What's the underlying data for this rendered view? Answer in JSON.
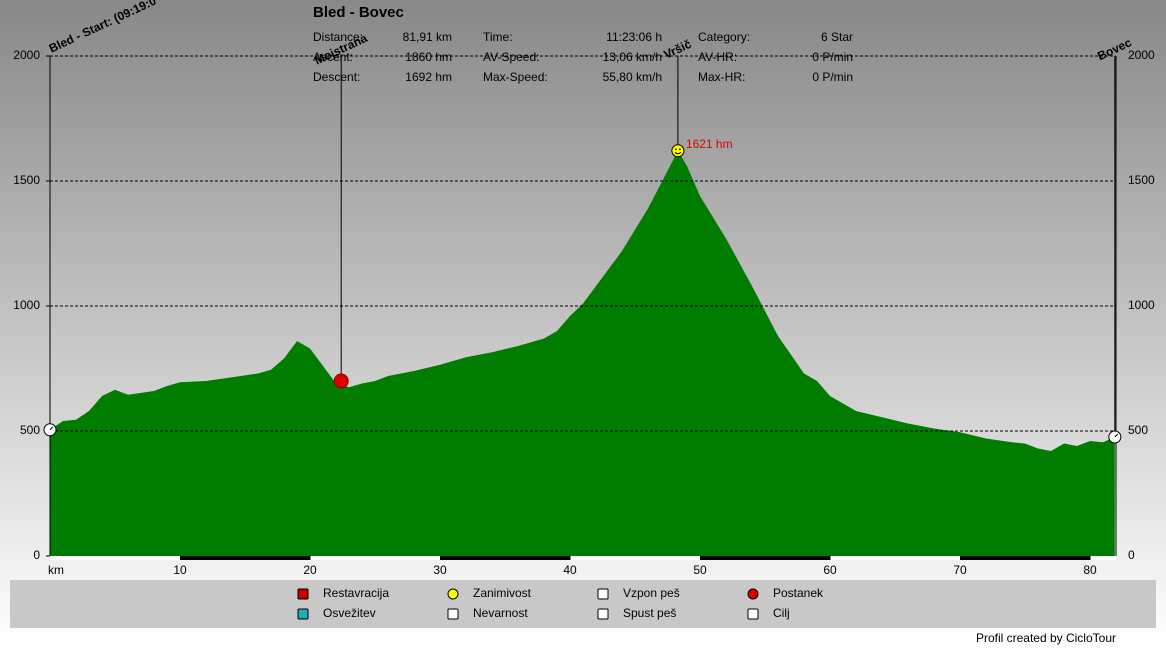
{
  "chart_data": {
    "type": "area",
    "title": "Bled - Bovec",
    "stats": [
      [
        {
          "label": "Distance:",
          "value": "81,91 km"
        },
        {
          "label": "Time:",
          "value": "11:23:06 h"
        },
        {
          "label": "Category:",
          "value": "6 Star"
        }
      ],
      [
        {
          "label": "Ascent:",
          "value": "1860 hm"
        },
        {
          "label": "AV-Speed:",
          "value": "13,06 km/h"
        },
        {
          "label": "AV-HR:",
          "value": "0 P/min"
        }
      ],
      [
        {
          "label": "Descent:",
          "value": "1692 hm"
        },
        {
          "label": "Max-Speed:",
          "value": "55,80 km/h"
        },
        {
          "label": "Max-HR:",
          "value": "0 P/min"
        }
      ]
    ],
    "x_label": "km",
    "x": [
      0,
      1,
      2,
      3,
      4,
      5,
      6,
      8,
      9,
      10,
      12,
      14,
      16,
      17,
      18,
      19,
      20,
      21,
      22,
      23,
      24,
      25,
      26,
      28,
      30,
      32,
      34,
      36,
      38,
      39,
      40,
      41,
      42,
      44,
      46,
      47,
      48.3,
      49,
      50,
      52,
      54,
      56,
      58,
      59,
      60,
      61,
      62,
      64,
      66,
      68,
      70,
      72,
      74,
      75,
      76,
      77,
      78,
      79,
      80,
      81,
      81.91
    ],
    "values": [
      505,
      540,
      545,
      580,
      640,
      665,
      645,
      660,
      680,
      695,
      700,
      715,
      730,
      745,
      790,
      860,
      830,
      760,
      690,
      675,
      690,
      700,
      720,
      740,
      765,
      795,
      815,
      840,
      870,
      900,
      960,
      1010,
      1080,
      1220,
      1390,
      1490,
      1621,
      1560,
      1440,
      1270,
      1080,
      880,
      730,
      700,
      640,
      610,
      580,
      555,
      530,
      510,
      495,
      470,
      455,
      450,
      430,
      420,
      450,
      440,
      460,
      455,
      476
    ],
    "color": "#007d00",
    "xlim": [
      0,
      82
    ],
    "ylim": [
      0,
      2000
    ],
    "xticks": [
      10,
      20,
      30,
      40,
      50,
      60,
      70,
      80
    ],
    "yticks": [
      0,
      500,
      1000,
      1500,
      2000
    ],
    "grid": true,
    "markers": [
      {
        "label": "Bled - Start: (09:19:0",
        "x": 0,
        "value": 505
      },
      {
        "label": "Mojstrana",
        "x": 22.4,
        "value": 700
      },
      {
        "label": "Vršič",
        "x": 48.3,
        "value": 1621,
        "value_label": "1621 hm"
      },
      {
        "label": "Bovec",
        "x": 81.91,
        "value": 476
      }
    ],
    "legend": [
      "Restavracija",
      "Zanimivost",
      "Vzpon peš",
      "Postanek",
      "Osvežitev",
      "Nevarnost",
      "Spust peš",
      "Cilj"
    ],
    "footer": "Profil created by CicloTour"
  }
}
